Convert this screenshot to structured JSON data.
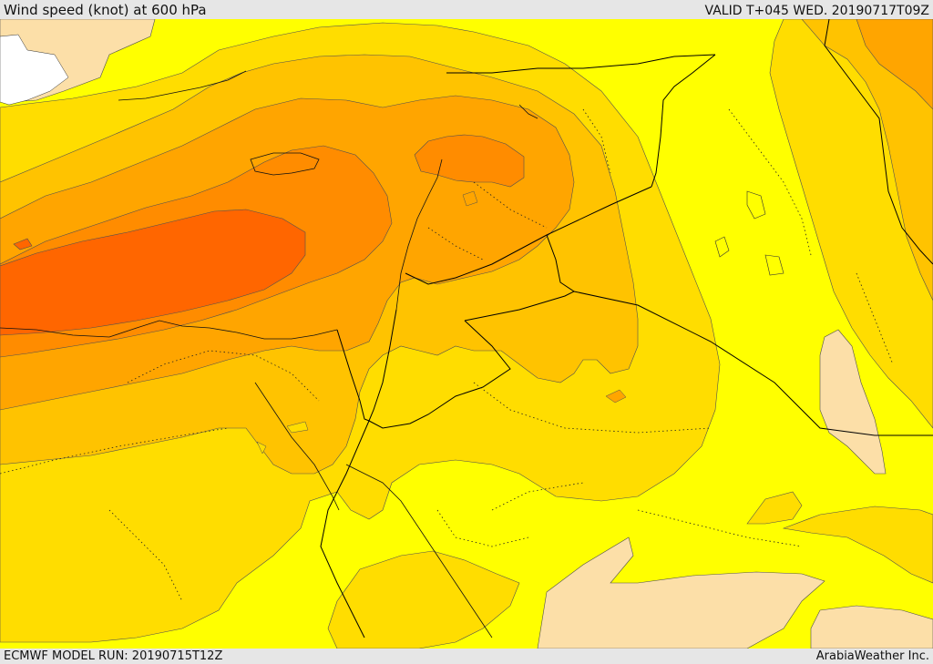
{
  "header": {
    "title": "Wind speed (knot) at 600 hPa",
    "valid": "VALID T+045 WED. 20190717T09Z"
  },
  "footer": {
    "model_run": "ECMWF MODEL RUN: 20190715T12Z",
    "credit": "ArabiaWeather Inc."
  },
  "colors": {
    "very_light": "#fcdfa8",
    "light": "#ffff00",
    "low": "#ffdd00",
    "medium_low": "#ffc300",
    "medium": "#ffa500",
    "medium_high": "#ff8c00",
    "high": "#ff6600",
    "border": "#000000",
    "contour": "#404040"
  }
}
